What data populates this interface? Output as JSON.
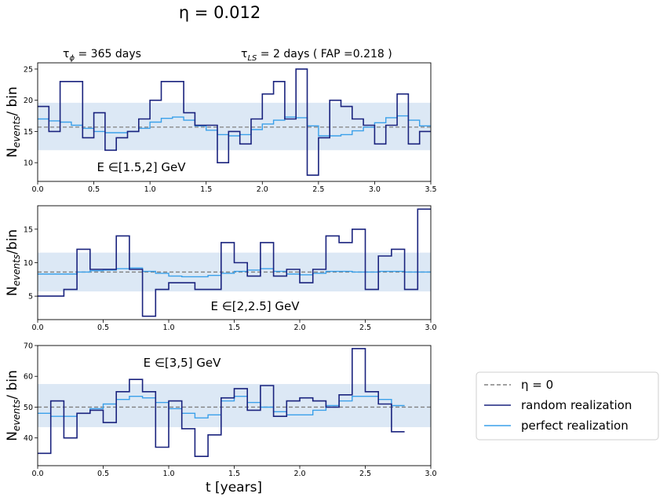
{
  "figure": {
    "title": "η = 0.012",
    "tau_phi_label": "τ_ϕ = 365 days",
    "tau_ls_label": "τ_LS = 2 days ( FAP =0.218 )",
    "ylabel_top": "N_events/ bin",
    "ylabel_middle": "N_events/bin",
    "ylabel_bottom": "N_events/ bin",
    "xlabel": "t [years]"
  },
  "legend": {
    "placement": "right",
    "items": [
      {
        "label": "η = 0",
        "style": "dashed",
        "color": "#808080"
      },
      {
        "label": "random realization",
        "style": "solid",
        "color": "#1a237e"
      },
      {
        "label": "perfect realization",
        "style": "solid",
        "color": "#3aa0ea"
      }
    ]
  },
  "colors": {
    "random": "#1a237e",
    "perfect": "#3aa0ea",
    "eta0": "#808080",
    "band": "#dce8f5"
  },
  "chart_data": [
    {
      "type": "line",
      "step": true,
      "label": "E ∈[1.5,2] GeV",
      "xlim": [
        0,
        3.5
      ],
      "ylim": [
        7,
        26
      ],
      "xticks": [
        0.0,
        0.5,
        1.0,
        1.5,
        2.0,
        2.5,
        3.0,
        3.5
      ],
      "xtick_labels": [
        "0.0",
        "0.5",
        "1.0",
        "1.5",
        "2.0",
        "2.5",
        "3.0",
        "3.5"
      ],
      "yticks": [
        10,
        15,
        20,
        25
      ],
      "eta0": 15.7,
      "band": [
        12,
        19.6
      ],
      "bin_width": 0.1,
      "series": [
        {
          "name": "random realization",
          "values": [
            19,
            15,
            23,
            23,
            14,
            18,
            12,
            14,
            15,
            17,
            20,
            23,
            23,
            18,
            16,
            16,
            10,
            15,
            13,
            17,
            21,
            23,
            17,
            25,
            8,
            14,
            20,
            19,
            17,
            16,
            13,
            16,
            21,
            13,
            15
          ]
        },
        {
          "name": "perfect realization",
          "values": [
            17,
            16.7,
            16.5,
            16,
            15.5,
            15,
            14.8,
            14.8,
            15,
            15.5,
            16.5,
            17.1,
            17.3,
            16.8,
            15.9,
            15.2,
            14.5,
            14.3,
            14.5,
            15.3,
            16.2,
            16.8,
            17.3,
            17.2,
            15.9,
            14.3,
            14.3,
            14.5,
            15.1,
            15.7,
            16.4,
            17.2,
            17.5,
            16.8,
            15.9
          ]
        }
      ]
    },
    {
      "type": "line",
      "step": true,
      "label": "E ∈[2,2.5] GeV",
      "xlim": [
        0,
        3.0
      ],
      "ylim": [
        1.5,
        18.5
      ],
      "xticks": [
        0.0,
        0.5,
        1.0,
        1.5,
        2.0,
        2.5,
        3.0
      ],
      "xtick_labels": [
        "0.0",
        "0.5",
        "1.0",
        "1.5",
        "2.0",
        "2.5",
        "3.0"
      ],
      "yticks": [
        5,
        10,
        15
      ],
      "eta0": 8.6,
      "band": [
        5.7,
        11.5
      ],
      "bin_width": 0.1,
      "series": [
        {
          "name": "random realization",
          "values": [
            5,
            5,
            6,
            12,
            9,
            9,
            14,
            9,
            2,
            6,
            7,
            7,
            6,
            6,
            13,
            10,
            8,
            13,
            8,
            9,
            7,
            9,
            14,
            13,
            15,
            6,
            11,
            12,
            6,
            18
          ]
        },
        {
          "name": "perfect realization",
          "values": [
            8.3,
            8.3,
            8.3,
            8.6,
            8.8,
            8.9,
            9.1,
            9.2,
            8.7,
            8.4,
            8.0,
            7.9,
            7.9,
            8.1,
            8.4,
            8.7,
            8.9,
            9.1,
            8.7,
            8.3,
            8.2,
            8.4,
            8.7,
            8.7,
            8.6,
            8.6,
            8.7,
            8.7,
            8.6,
            8.6
          ]
        }
      ]
    },
    {
      "type": "line",
      "step": true,
      "label": "E ∈[3,5] GeV",
      "xlim": [
        0,
        3.0
      ],
      "ylim": [
        31,
        70
      ],
      "xticks": [
        0.0,
        0.5,
        1.0,
        1.5,
        2.0,
        2.5,
        3.0
      ],
      "xtick_labels": [
        "0.0",
        "0.5",
        "1.0",
        "1.5",
        "2.0",
        "2.5",
        "3.0"
      ],
      "yticks": [
        40,
        50,
        60,
        70
      ],
      "eta0": 50,
      "band": [
        43.5,
        57.5
      ],
      "bin_width": 0.1,
      "series": [
        {
          "name": "random realization",
          "values": [
            35,
            52,
            40,
            48,
            49,
            45,
            55,
            59,
            55,
            37,
            52,
            43,
            34,
            41,
            53,
            56,
            49,
            57,
            47,
            52,
            53,
            52,
            50,
            54,
            69,
            55,
            51,
            42
          ]
        },
        {
          "name": "perfect realization",
          "values": [
            48,
            47,
            47,
            48,
            49.5,
            51,
            52.5,
            53.5,
            53,
            51.5,
            49.5,
            48,
            46.5,
            47.5,
            52,
            53.5,
            51.5,
            50,
            48.5,
            47.5,
            47.5,
            49,
            50.5,
            52,
            53.5,
            53.5,
            52.5,
            50.5
          ]
        }
      ]
    }
  ]
}
